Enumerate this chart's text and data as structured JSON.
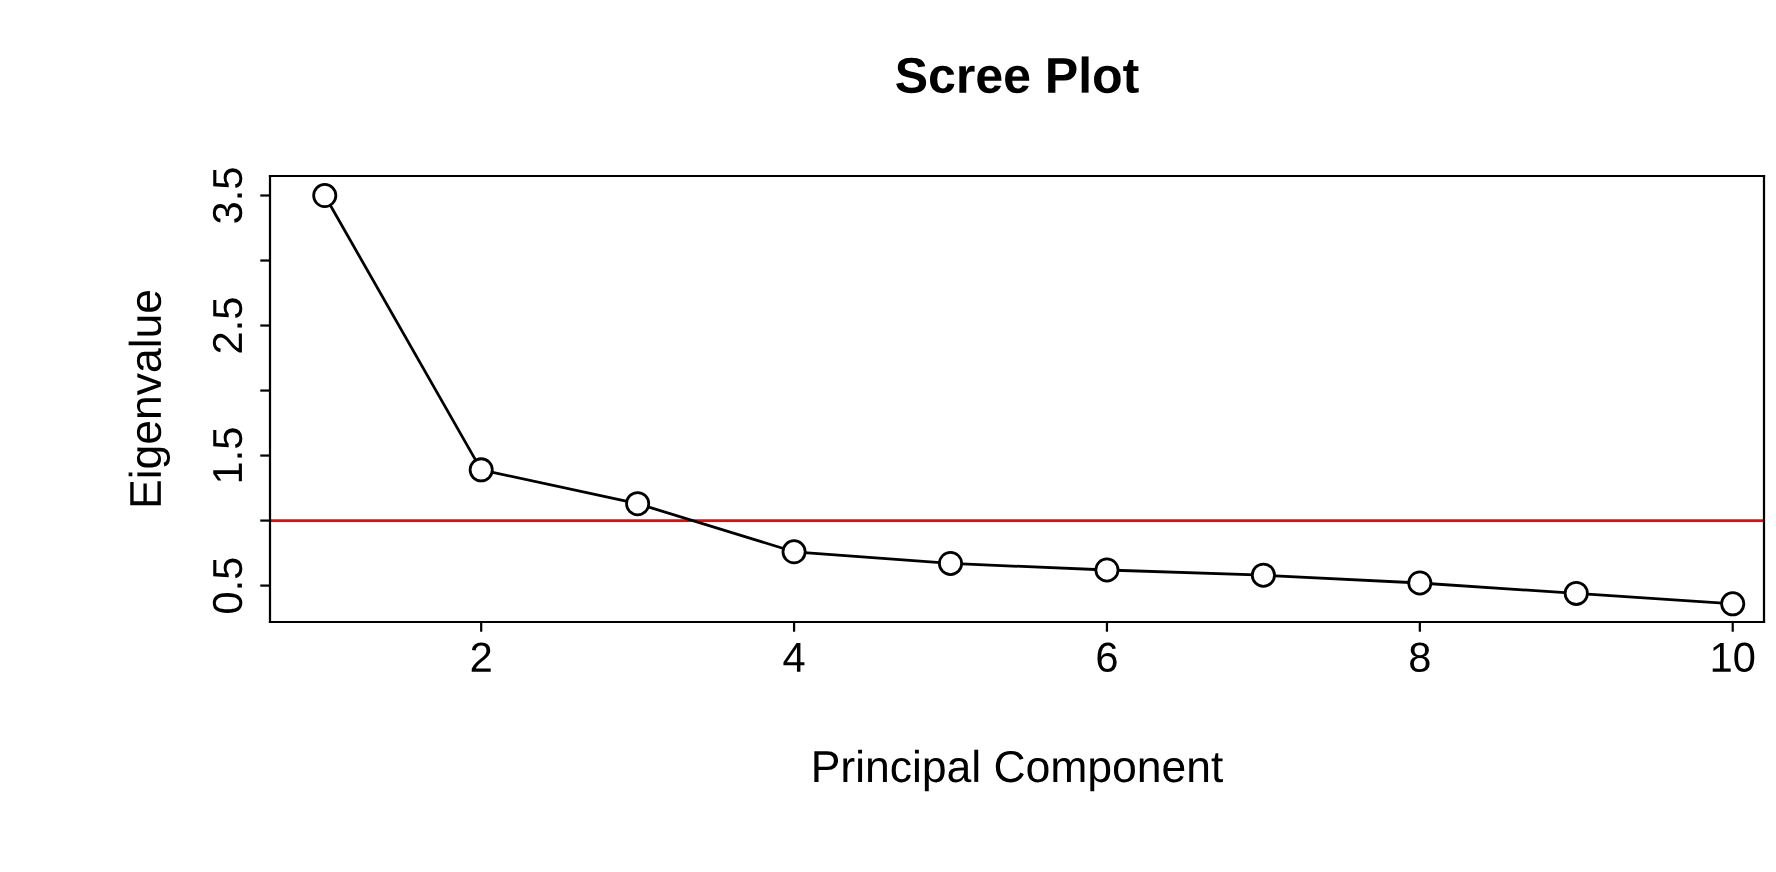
{
  "chart_data": {
    "type": "line",
    "title": "Scree Plot",
    "xlabel": "Principal Component",
    "ylabel": "Eigenvalue",
    "x": [
      1,
      2,
      3,
      4,
      5,
      6,
      7,
      8,
      9,
      10
    ],
    "series": [
      {
        "color": "#000000",
        "values": [
          3.5,
          1.39,
          1.13,
          0.76,
          0.67,
          0.62,
          0.58,
          0.52,
          0.44,
          0.36
        ]
      }
    ],
    "xlim": [
      0.65,
      10.2
    ],
    "xticks": [
      2,
      4,
      6,
      8,
      10
    ],
    "ylim": [
      0.22,
      3.65
    ],
    "yticks": [
      0.5,
      {
        "value": 1.0,
        "label": null
      },
      1.5,
      {
        "value": 2.0,
        "label": null
      },
      2.5,
      {
        "value": 3.0,
        "label": null
      },
      3.5
    ],
    "ref_lines": [
      {
        "axis": "y",
        "value": 1.0,
        "color": "#ff0000"
      }
    ],
    "marker": "circle",
    "line_style": "solid",
    "grid": false
  }
}
